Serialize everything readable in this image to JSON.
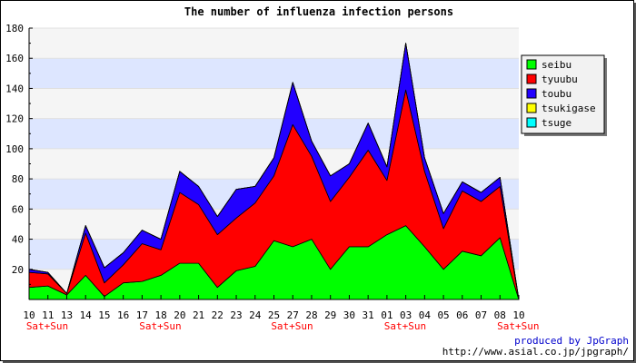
{
  "chart_data": {
    "type": "area",
    "stacked": true,
    "title": "The number of influenza infection persons",
    "xlabel": "",
    "ylabel": "",
    "ylim": [
      0,
      180
    ],
    "yticks": [
      20,
      40,
      60,
      80,
      100,
      120,
      140,
      160,
      180
    ],
    "grid": true,
    "legend_position": "right",
    "categories": [
      "10",
      "11",
      "13",
      "14",
      "15",
      "16",
      "17",
      "18",
      "20",
      "21",
      "22",
      "23",
      "24",
      "25",
      "27",
      "28",
      "29",
      "30",
      "31",
      "01",
      "03",
      "04",
      "05",
      "06",
      "07",
      "08",
      "10"
    ],
    "weekend_label": "Sat+Sun",
    "weekend_marks": [
      0,
      6,
      13,
      19,
      25
    ],
    "series": [
      {
        "name": "seibu",
        "color": "#00ff00",
        "values": [
          8,
          9,
          3,
          16,
          2,
          11,
          12,
          16,
          24,
          24,
          8,
          19,
          22,
          39,
          35,
          40,
          20,
          35,
          35,
          43,
          49,
          35,
          20,
          32,
          29,
          41,
          0
        ]
      },
      {
        "name": "tyuubu",
        "color": "#ff0000",
        "values": [
          10,
          8,
          1,
          28,
          9,
          12,
          25,
          17,
          47,
          39,
          35,
          35,
          42,
          43,
          81,
          55,
          45,
          46,
          64,
          36,
          90,
          50,
          27,
          40,
          36,
          34,
          0
        ]
      },
      {
        "name": "toubu",
        "color": "#2200ff",
        "values": [
          2,
          1,
          0,
          5,
          10,
          8,
          9,
          7,
          14,
          12,
          12,
          19,
          11,
          12,
          28,
          10,
          17,
          9,
          18,
          9,
          31,
          9,
          10,
          6,
          6,
          6,
          0
        ]
      },
      {
        "name": "tsukigase",
        "color": "#ffff00",
        "values": [
          0,
          0,
          0,
          0,
          0,
          0,
          0,
          0,
          0,
          0,
          0,
          0,
          0,
          0,
          0,
          0,
          0,
          0,
          0,
          0,
          0,
          0,
          0,
          0,
          0,
          0,
          0
        ]
      },
      {
        "name": "tsuge",
        "color": "#00ffff",
        "values": [
          0,
          0,
          0,
          0,
          0,
          0,
          0,
          0,
          0,
          0,
          0,
          0,
          0,
          0,
          0,
          0,
          0,
          0,
          0,
          0,
          0,
          0,
          0,
          0,
          0,
          0,
          0
        ]
      }
    ]
  },
  "footer": {
    "produced_by": "produced by JpGraph",
    "url": "http://www.asial.co.jp/jpgraph/"
  }
}
